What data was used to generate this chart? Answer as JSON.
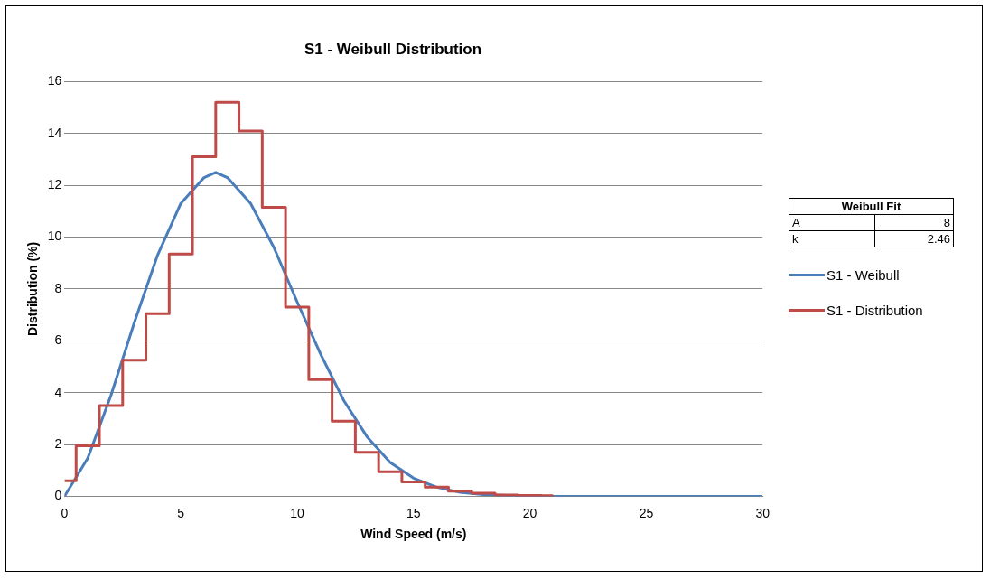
{
  "chart_data": {
    "type": "line",
    "title": "S1 - Weibull Distribution",
    "xlabel": "Wind Speed (m/s)",
    "ylabel": "Distribution (%)",
    "xlim": [
      0,
      30
    ],
    "xticks": [
      0,
      5,
      10,
      15,
      20,
      25,
      30
    ],
    "ylim": [
      0,
      16
    ],
    "yticks": [
      0,
      2,
      4,
      6,
      8,
      10,
      12,
      14,
      16
    ],
    "grid": "y",
    "legend": "right",
    "marker": "none",
    "line_style": "solid",
    "annotations": [
      "Weibull Fit",
      "A",
      "8",
      "k",
      "2.46"
    ],
    "series": [
      {
        "name": "S1 - Weibull",
        "color": "#4a7ebb",
        "type": "line",
        "x": [
          0,
          1,
          2,
          3,
          4,
          5,
          6,
          6.5,
          7,
          8,
          9,
          10,
          11,
          12,
          13,
          14,
          15,
          16,
          17,
          18,
          19,
          20,
          21,
          22,
          23,
          24,
          25,
          26,
          27,
          28,
          29,
          30
        ],
        "values": [
          0,
          1.47,
          3.9,
          6.7,
          9.3,
          11.3,
          12.3,
          12.5,
          12.3,
          11.3,
          9.6,
          7.5,
          5.5,
          3.7,
          2.3,
          1.3,
          0.7,
          0.35,
          0.15,
          0.07,
          0.03,
          0.01,
          0,
          0,
          0,
          0,
          0,
          0,
          0,
          0,
          0,
          0
        ]
      },
      {
        "name": "S1 - Distribution",
        "color": "#be4b48",
        "type": "step",
        "x": [
          0,
          1,
          2,
          3,
          4,
          5,
          6,
          7,
          8,
          9,
          10,
          11,
          12,
          13,
          14,
          15,
          16,
          17,
          18,
          19,
          20,
          21
        ],
        "values": [
          0.6,
          1.95,
          3.5,
          5.25,
          7.05,
          9.35,
          13.1,
          15.2,
          14.1,
          11.15,
          7.3,
          4.5,
          2.9,
          1.7,
          0.95,
          0.55,
          0.35,
          0.2,
          0.12,
          0.05,
          0.03,
          0.02
        ]
      }
    ]
  }
}
